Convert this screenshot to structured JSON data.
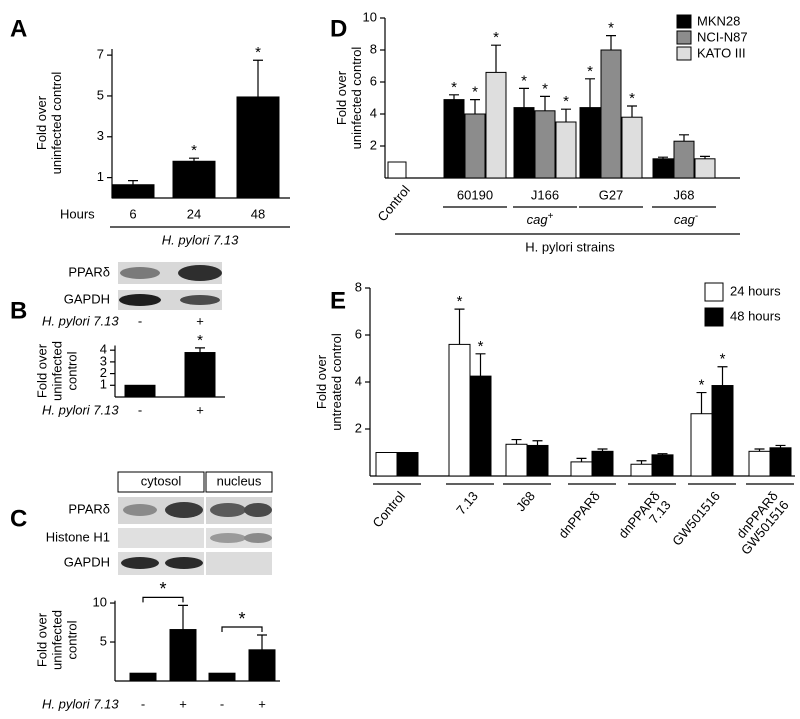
{
  "chart_data": [
    {
      "panel": "A",
      "type": "bar",
      "ylabel": [
        "Fold over",
        "uninfected control"
      ],
      "xlabel": "H. pylori 7.13",
      "category_title": "Hours",
      "categories": [
        "6",
        "24",
        "48"
      ],
      "values": [
        0.65,
        1.8,
        4.95
      ],
      "errors": [
        0.2,
        0.15,
        1.8
      ],
      "significance": [
        null,
        "*",
        "*"
      ],
      "color": "#000000",
      "ylim": [
        0,
        7.3
      ],
      "yticks": [
        1,
        3,
        5,
        7
      ]
    },
    {
      "panel": "B",
      "type": "bar",
      "blot_rows": [
        "PPARδ",
        "GAPDH"
      ],
      "ylabel": [
        "Fold over",
        "uninfected",
        "control"
      ],
      "xlabel": "H. pylori 7.13",
      "categories": [
        "-",
        "+"
      ],
      "values": [
        1,
        3.8
      ],
      "errors": [
        null,
        0.4
      ],
      "significance": [
        null,
        "*"
      ],
      "color": "#000000",
      "ylim": [
        0,
        4.4
      ],
      "yticks": [
        1,
        2,
        3,
        4
      ]
    },
    {
      "panel": "C",
      "type": "bar",
      "blot_columns": [
        "cytosol",
        "nucleus"
      ],
      "blot_rows": [
        "PPARδ",
        "Histone H1",
        "GAPDH"
      ],
      "ylabel": [
        "Fold over",
        "uninfected",
        "control"
      ],
      "xlabel": "H. pylori 7.13",
      "categories": [
        "-",
        "+",
        "-",
        "+"
      ],
      "values": [
        1,
        6.6,
        1,
        4
      ],
      "errors": [
        null,
        3.1,
        null,
        1.9
      ],
      "comparisons": [
        "*",
        "*"
      ],
      "color": "#000000",
      "ylim": [
        0,
        10.3
      ],
      "yticks": [
        5,
        10
      ]
    },
    {
      "panel": "D",
      "type": "grouped_bar",
      "ylabel": [
        "Fold over",
        "uninfected control"
      ],
      "xlabel": "H. pylori strains",
      "control": {
        "category": "Control",
        "value": 1,
        "color": "#ffffff"
      },
      "categories": [
        "60190",
        "J166",
        "G27",
        "J68"
      ],
      "groups": [
        {
          "label": "cag",
          "sup": "+"
        },
        {
          "label": "cag",
          "sup": "-"
        }
      ],
      "series": [
        {
          "name": "MKN28",
          "color": "#000000",
          "values": [
            4.9,
            4.4,
            4.4,
            1.2
          ],
          "errors": [
            0.3,
            1.2,
            1.8,
            0.1
          ],
          "significance": [
            "*",
            "*",
            "*",
            null
          ]
        },
        {
          "name": "NCI-N87",
          "color": "#8c8c8c",
          "values": [
            4.0,
            4.2,
            8.0,
            2.3
          ],
          "errors": [
            0.9,
            0.9,
            0.9,
            0.4
          ],
          "significance": [
            "*",
            "*",
            "*",
            null
          ]
        },
        {
          "name": "KATO III",
          "color": "#dedede",
          "values": [
            6.6,
            3.5,
            3.8,
            1.2
          ],
          "errors": [
            1.7,
            0.8,
            0.7,
            0.15
          ],
          "significance": [
            "*",
            "*",
            "*",
            null
          ]
        }
      ],
      "ylim": [
        0,
        10
      ],
      "yticks": [
        2,
        4,
        6,
        8,
        10
      ]
    },
    {
      "panel": "E",
      "type": "grouped_bar",
      "ylabel": [
        "Fold over",
        "untreated control"
      ],
      "categories": [
        [
          "Control"
        ],
        [
          "7.13"
        ],
        [
          "J68"
        ],
        [
          "dnPPARδ"
        ],
        [
          "dnPPARδ",
          "7.13"
        ],
        [
          "GW501516"
        ],
        [
          "dnPPARδ",
          "GW501516"
        ]
      ],
      "series": [
        {
          "name": "24 hours",
          "color": "#ffffff",
          "values": [
            1,
            5.6,
            1.35,
            0.6,
            0.5,
            2.65,
            1.05
          ],
          "errors": [
            null,
            1.5,
            0.2,
            0.15,
            0.15,
            0.9,
            0.1
          ],
          "significance": [
            null,
            "*",
            null,
            null,
            null,
            "*",
            null
          ]
        },
        {
          "name": "48 hours",
          "color": "#000000",
          "values": [
            1,
            4.25,
            1.3,
            1.05,
            0.9,
            3.85,
            1.2
          ],
          "errors": [
            null,
            0.95,
            0.2,
            0.1,
            0.05,
            0.8,
            0.1
          ],
          "significance": [
            null,
            "*",
            null,
            null,
            null,
            "*",
            null
          ]
        }
      ],
      "ylim": [
        0,
        8
      ],
      "yticks": [
        2,
        4,
        6,
        8
      ]
    }
  ]
}
